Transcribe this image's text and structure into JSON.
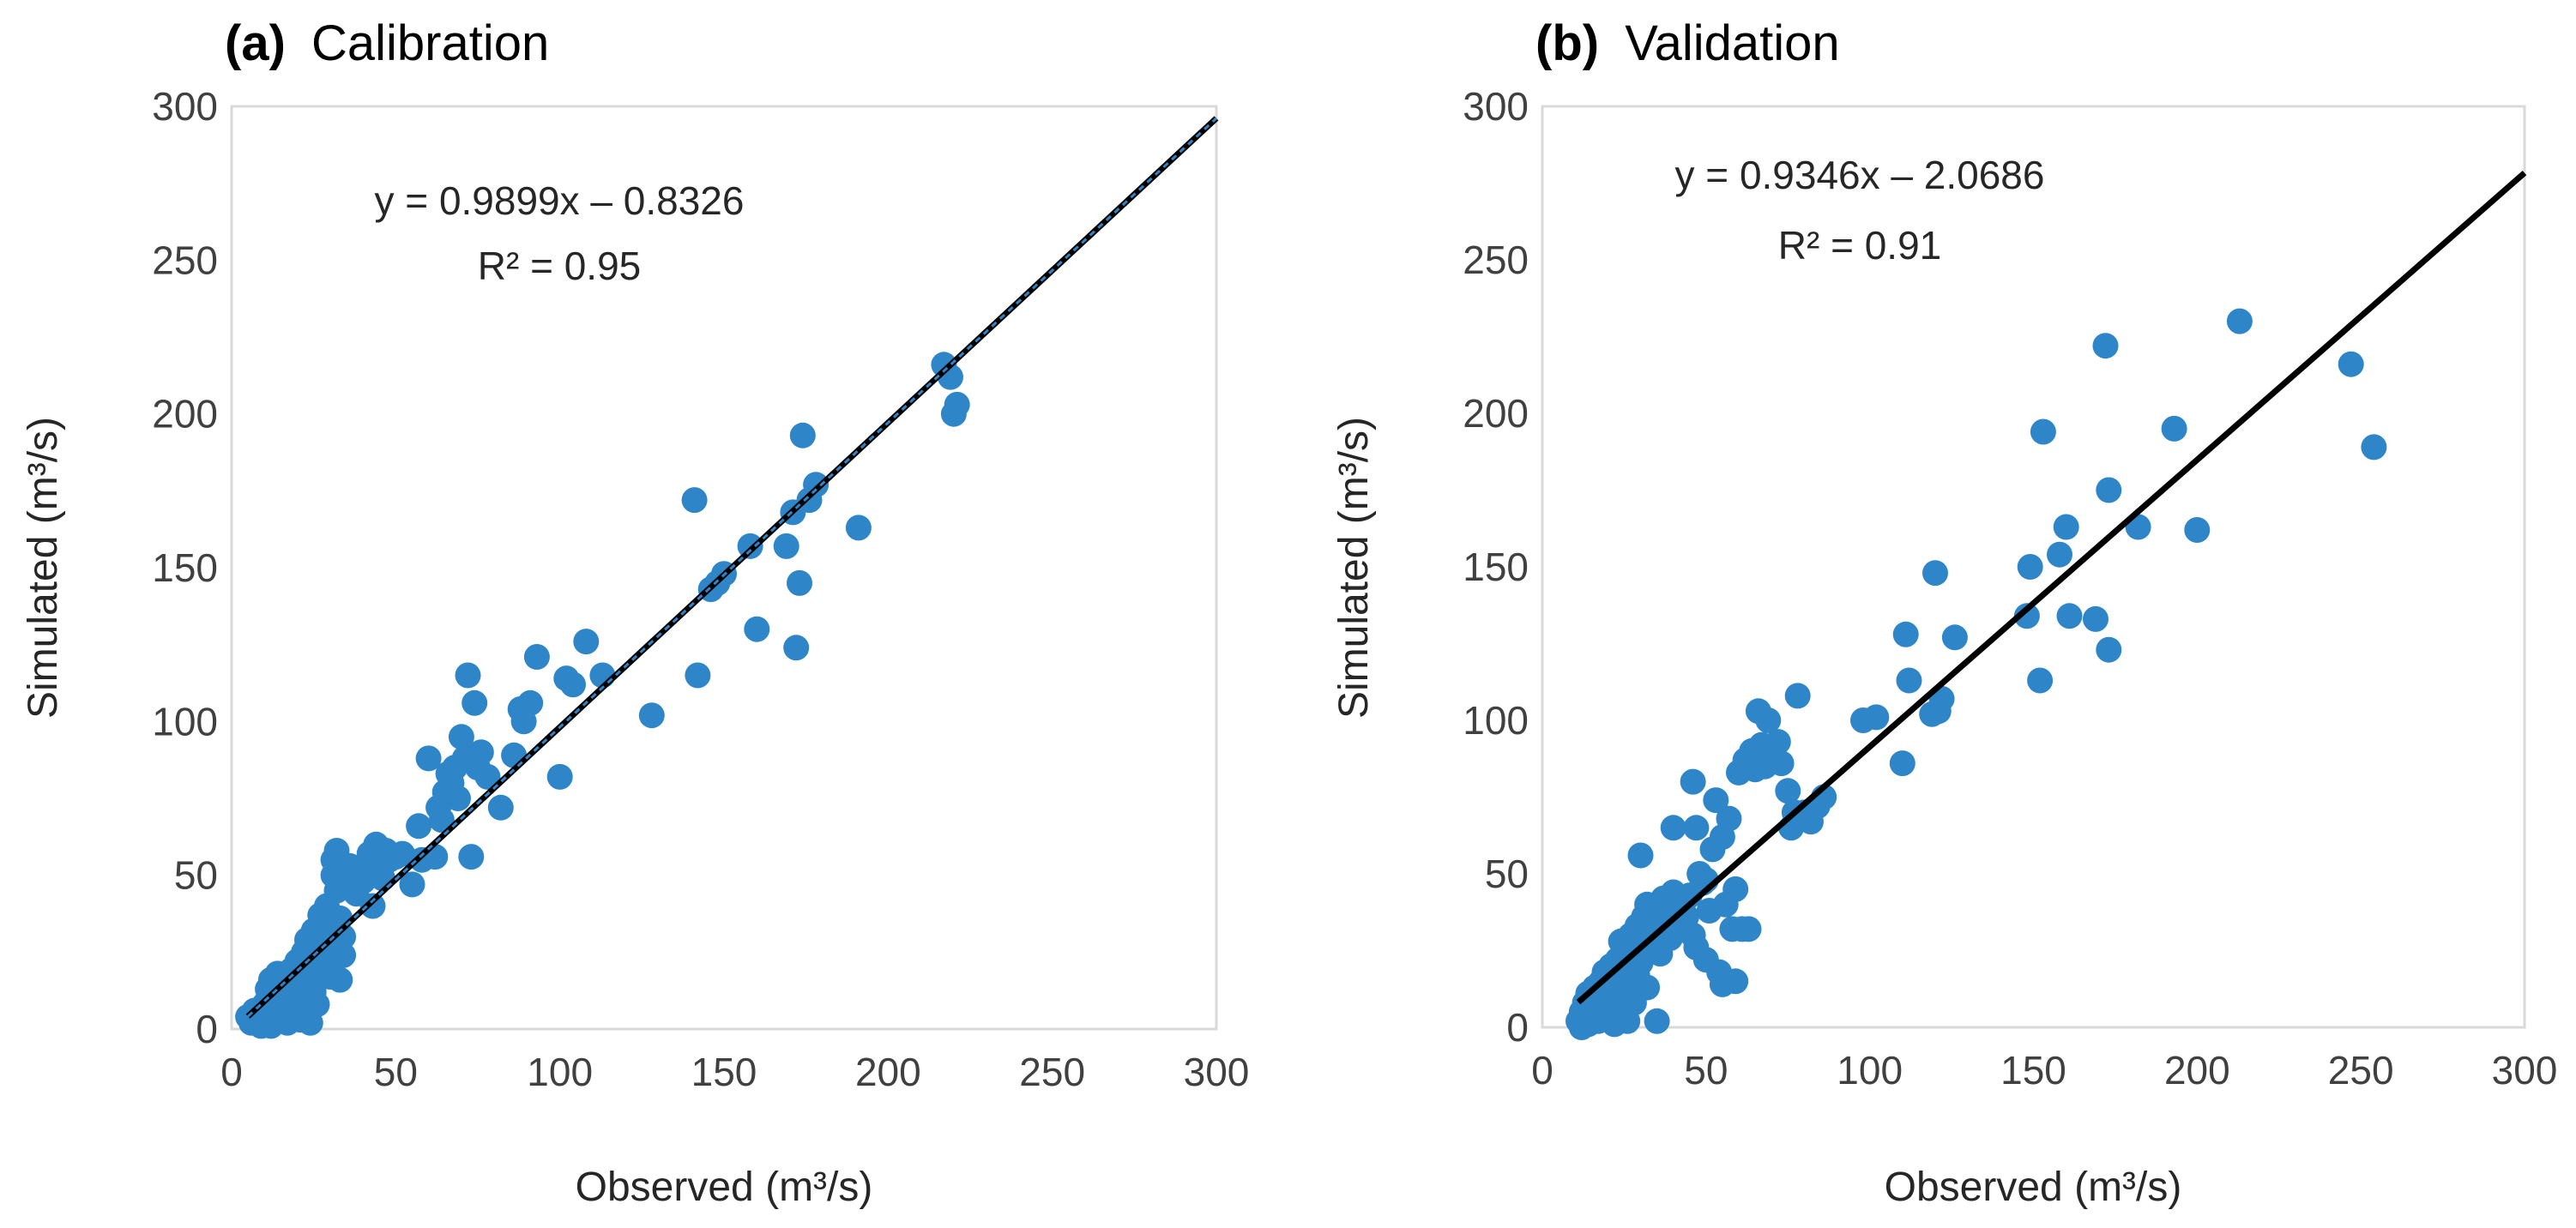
{
  "charts": [
    {
      "panel_label": "(a)",
      "panel_name": "Calibration",
      "equation": "y = 0.9899x – 0.8326",
      "r2": "R² = 0.95",
      "accent": "#2e86c9",
      "line_style": "dotted"
    },
    {
      "panel_label": "(b)",
      "panel_name": "Validation",
      "equation": "y = 0.9346x – 2.0686",
      "r2": "R² = 0.91",
      "accent": "#000000",
      "line_style": "solid"
    }
  ],
  "chart_data": [
    {
      "type": "scatter",
      "title": "(a) Calibration",
      "xlabel": "Observed (m³/s)",
      "ylabel": "Simulated (m³/s)",
      "xlim": [
        0,
        300
      ],
      "ylim": [
        0,
        300
      ],
      "xticks": [
        "0",
        "50",
        "100",
        "150",
        "200",
        "250",
        "300"
      ],
      "yticks": [
        "0",
        "50",
        "100",
        "150",
        "200",
        "250",
        "300"
      ],
      "grid": false,
      "marker_color": "#2e86c9",
      "trendline": {
        "slope": 0.9899,
        "intercept": -0.8326,
        "x_range": [
          5,
          300
        ],
        "r2": 0.95,
        "style": "black dashed with blue dotted center"
      },
      "points": [
        [
          5,
          4
        ],
        [
          6,
          2
        ],
        [
          7,
          6
        ],
        [
          8,
          3
        ],
        [
          9,
          1
        ],
        [
          10,
          8
        ],
        [
          10,
          2
        ],
        [
          11,
          13
        ],
        [
          11,
          5
        ],
        [
          12,
          16
        ],
        [
          12,
          1
        ],
        [
          13,
          7
        ],
        [
          14,
          18
        ],
        [
          14,
          10
        ],
        [
          15,
          3
        ],
        [
          15,
          12
        ],
        [
          16,
          6
        ],
        [
          16,
          14
        ],
        [
          17,
          9
        ],
        [
          17,
          2
        ],
        [
          18,
          4
        ],
        [
          18,
          19
        ],
        [
          19,
          11
        ],
        [
          19,
          15
        ],
        [
          20,
          8
        ],
        [
          20,
          22
        ],
        [
          21,
          3
        ],
        [
          21,
          13
        ],
        [
          22,
          25
        ],
        [
          22,
          17
        ],
        [
          23,
          5
        ],
        [
          23,
          29
        ],
        [
          24,
          2
        ],
        [
          24,
          20
        ],
        [
          25,
          12
        ],
        [
          25,
          32
        ],
        [
          26,
          24
        ],
        [
          26,
          8
        ],
        [
          27,
          37
        ],
        [
          27,
          18
        ],
        [
          28,
          28
        ],
        [
          28,
          33
        ],
        [
          29,
          21
        ],
        [
          29,
          40
        ],
        [
          30,
          26
        ],
        [
          30,
          17
        ],
        [
          31,
          50
        ],
        [
          31,
          55
        ],
        [
          32,
          45
        ],
        [
          32,
          58
        ],
        [
          33,
          36
        ],
        [
          33,
          16
        ],
        [
          34,
          24
        ],
        [
          34,
          30
        ],
        [
          35,
          47
        ],
        [
          36,
          53
        ],
        [
          38,
          44
        ],
        [
          40,
          48
        ],
        [
          41,
          51
        ],
        [
          42,
          57
        ],
        [
          43,
          40
        ],
        [
          44,
          60
        ],
        [
          45,
          53
        ],
        [
          46,
          49
        ],
        [
          47,
          58
        ],
        [
          48,
          55
        ],
        [
          50,
          56
        ],
        [
          52,
          57
        ],
        [
          55,
          47
        ],
        [
          57,
          66
        ],
        [
          58,
          55
        ],
        [
          60,
          88
        ],
        [
          62,
          56
        ],
        [
          63,
          72
        ],
        [
          64,
          68
        ],
        [
          65,
          77
        ],
        [
          66,
          83
        ],
        [
          67,
          80
        ],
        [
          68,
          85
        ],
        [
          69,
          75
        ],
        [
          70,
          95
        ],
        [
          71,
          88
        ],
        [
          72,
          115
        ],
        [
          73,
          56
        ],
        [
          74,
          106
        ],
        [
          75,
          85
        ],
        [
          76,
          90
        ],
        [
          78,
          82
        ],
        [
          82,
          72
        ],
        [
          86,
          89
        ],
        [
          88,
          104
        ],
        [
          89,
          100
        ],
        [
          91,
          106
        ],
        [
          93,
          121
        ],
        [
          100,
          82
        ],
        [
          102,
          114
        ],
        [
          104,
          112
        ],
        [
          108,
          126
        ],
        [
          113,
          115
        ],
        [
          128,
          102
        ],
        [
          141,
          172
        ],
        [
          142,
          115
        ],
        [
          146,
          143
        ],
        [
          148,
          145
        ],
        [
          150,
          148
        ],
        [
          158,
          157
        ],
        [
          160,
          130
        ],
        [
          169,
          157
        ],
        [
          171,
          168
        ],
        [
          172,
          124
        ],
        [
          173,
          145
        ],
        [
          174,
          193
        ],
        [
          176,
          172
        ],
        [
          178,
          177
        ],
        [
          191,
          163
        ],
        [
          217,
          216
        ],
        [
          219,
          212
        ],
        [
          220,
          200
        ],
        [
          221,
          203
        ]
      ]
    },
    {
      "type": "scatter",
      "title": "(b) Validation",
      "xlabel": "Observed (m³/s)",
      "ylabel": "Simulated (m³/s)",
      "xlim": [
        0,
        300
      ],
      "ylim": [
        0,
        300
      ],
      "xticks": [
        "0",
        "50",
        "100",
        "150",
        "200",
        "250",
        "300"
      ],
      "yticks": [
        "0",
        "50",
        "100",
        "150",
        "200",
        "250",
        "300"
      ],
      "grid": false,
      "marker_color": "#2e86c9",
      "trendline": {
        "slope": 0.9346,
        "intercept": -2.0686,
        "x_range": [
          11,
          300
        ],
        "r2": 0.91,
        "style": "solid black"
      },
      "points": [
        [
          11,
          2
        ],
        [
          12,
          5
        ],
        [
          12,
          0
        ],
        [
          13,
          8
        ],
        [
          14,
          1
        ],
        [
          14,
          11
        ],
        [
          15,
          4
        ],
        [
          16,
          7
        ],
        [
          16,
          13
        ],
        [
          17,
          2
        ],
        [
          17,
          10
        ],
        [
          18,
          15
        ],
        [
          18,
          5
        ],
        [
          19,
          9
        ],
        [
          19,
          18
        ],
        [
          20,
          3
        ],
        [
          20,
          12
        ],
        [
          21,
          20
        ],
        [
          21,
          7
        ],
        [
          22,
          1
        ],
        [
          22,
          16
        ],
        [
          23,
          22
        ],
        [
          23,
          10
        ],
        [
          24,
          6
        ],
        [
          24,
          28
        ],
        [
          25,
          14
        ],
        [
          25,
          24
        ],
        [
          26,
          2
        ],
        [
          26,
          19
        ],
        [
          27,
          30
        ],
        [
          27,
          11
        ],
        [
          28,
          26
        ],
        [
          28,
          8
        ],
        [
          29,
          33
        ],
        [
          29,
          17
        ],
        [
          30,
          21
        ],
        [
          30,
          56
        ],
        [
          31,
          36
        ],
        [
          32,
          13
        ],
        [
          32,
          40
        ],
        [
          33,
          27
        ],
        [
          34,
          31
        ],
        [
          35,
          38
        ],
        [
          35,
          2
        ],
        [
          36,
          24
        ],
        [
          37,
          42
        ],
        [
          38,
          35
        ],
        [
          39,
          29
        ],
        [
          40,
          65
        ],
        [
          40,
          44
        ],
        [
          41,
          38
        ],
        [
          42,
          33
        ],
        [
          43,
          40
        ],
        [
          44,
          36
        ],
        [
          45,
          43
        ],
        [
          46,
          80
        ],
        [
          46,
          30
        ],
        [
          47,
          65
        ],
        [
          47,
          26
        ],
        [
          48,
          50
        ],
        [
          49,
          47
        ],
        [
          50,
          22
        ],
        [
          50,
          48
        ],
        [
          51,
          38
        ],
        [
          52,
          58
        ],
        [
          53,
          74
        ],
        [
          54,
          18
        ],
        [
          55,
          62
        ],
        [
          55,
          14
        ],
        [
          56,
          40
        ],
        [
          57,
          68
        ],
        [
          58,
          32
        ],
        [
          59,
          15
        ],
        [
          59,
          45
        ],
        [
          60,
          83
        ],
        [
          61,
          32
        ],
        [
          62,
          87
        ],
        [
          63,
          32
        ],
        [
          64,
          90
        ],
        [
          65,
          84
        ],
        [
          66,
          103
        ],
        [
          67,
          92
        ],
        [
          68,
          85
        ],
        [
          69,
          100
        ],
        [
          70,
          87
        ],
        [
          72,
          93
        ],
        [
          73,
          86
        ],
        [
          75,
          77
        ],
        [
          76,
          65
        ],
        [
          77,
          70
        ],
        [
          78,
          108
        ],
        [
          80,
          70
        ],
        [
          82,
          67
        ],
        [
          84,
          72
        ],
        [
          86,
          75
        ],
        [
          98,
          100
        ],
        [
          102,
          101
        ],
        [
          110,
          86
        ],
        [
          111,
          128
        ],
        [
          112,
          113
        ],
        [
          119,
          102
        ],
        [
          120,
          148
        ],
        [
          121,
          103
        ],
        [
          122,
          107
        ],
        [
          126,
          127
        ],
        [
          148,
          134
        ],
        [
          149,
          150
        ],
        [
          152,
          113
        ],
        [
          153,
          194
        ],
        [
          158,
          154
        ],
        [
          160,
          163
        ],
        [
          161,
          134
        ],
        [
          169,
          133
        ],
        [
          172,
          222
        ],
        [
          173,
          175
        ],
        [
          173,
          123
        ],
        [
          182,
          163
        ],
        [
          193,
          195
        ],
        [
          200,
          162
        ],
        [
          213,
          230
        ],
        [
          247,
          216
        ],
        [
          254,
          189
        ]
      ]
    }
  ]
}
